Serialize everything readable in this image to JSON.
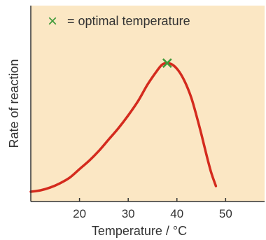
{
  "chart_data": {
    "type": "line",
    "xlabel": "Temperature / °C",
    "ylabel": "Rate of reaction",
    "xlim": [
      10,
      58
    ],
    "ylim": [
      0,
      100
    ],
    "x_ticks": [
      20,
      30,
      40,
      50
    ],
    "grid": false,
    "y_ticks_shown": false,
    "series": [
      {
        "color": "#d42b1e",
        "points": [
          [
            10,
            0
          ],
          [
            12,
            1
          ],
          [
            14,
            3
          ],
          [
            16,
            6
          ],
          [
            18,
            10
          ],
          [
            20,
            16
          ],
          [
            22,
            22
          ],
          [
            24,
            29
          ],
          [
            26,
            37
          ],
          [
            28,
            45
          ],
          [
            30,
            54
          ],
          [
            32,
            64
          ],
          [
            34,
            76
          ],
          [
            36,
            86
          ],
          [
            37,
            90
          ],
          [
            38,
            91
          ],
          [
            39,
            90
          ],
          [
            40,
            87
          ],
          [
            41,
            82
          ],
          [
            42,
            75
          ],
          [
            43,
            66
          ],
          [
            44,
            54
          ],
          [
            45,
            41
          ],
          [
            46,
            27
          ],
          [
            47,
            14
          ],
          [
            48,
            4
          ]
        ]
      }
    ],
    "optimum": {
      "x": 38,
      "y": 91,
      "marker": "cross",
      "color": "#3f9a3a"
    },
    "legend": {
      "symbol": "×",
      "text": "= optimal temperature",
      "symbol_color": "#3f9a3a",
      "position": "top"
    },
    "background_color": "#fbe7c4",
    "axis_color": "#333333"
  }
}
